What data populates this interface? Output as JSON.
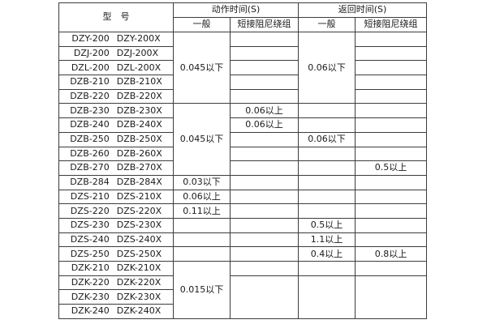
{
  "page": {
    "background": "#ffffff"
  },
  "colors": {
    "border": "#3c3c3c",
    "text": "#1a1a1a"
  },
  "table": {
    "header": {
      "model_label": "型　号",
      "groups": [
        {
          "label": "动作时间(S)",
          "sub": [
            "一般",
            "短接阻尼绕组"
          ]
        },
        {
          "label": "返回时间(S)",
          "sub": [
            "一般",
            "短接阻尼绕组"
          ]
        }
      ]
    },
    "column_keys": [
      "action_general",
      "action_damped",
      "return_general",
      "return_damped"
    ],
    "rows": [
      {
        "models": [
          "DZY-200",
          "DZY-200X"
        ],
        "cells": [
          {
            "t": "0.045以下",
            "rs": 5
          },
          {
            "t": ""
          },
          {
            "t": "0.06以下",
            "rs": 5
          },
          {
            "t": ""
          }
        ]
      },
      {
        "models": [
          "DZJ-200",
          "DZJ-200X"
        ],
        "cells": [
          null,
          {
            "t": ""
          },
          null,
          {
            "t": ""
          }
        ]
      },
      {
        "models": [
          "DZL-200",
          "DZL-200X"
        ],
        "cells": [
          null,
          {
            "t": ""
          },
          null,
          {
            "t": ""
          }
        ]
      },
      {
        "models": [
          "DZB-210",
          "DZB-210X"
        ],
        "cells": [
          null,
          {
            "t": ""
          },
          null,
          {
            "t": ""
          }
        ]
      },
      {
        "models": [
          "DZB-220",
          "DZB-220X"
        ],
        "cells": [
          null,
          {
            "t": ""
          },
          null,
          {
            "t": ""
          }
        ]
      },
      {
        "models": [
          "DZB-230",
          "DZB-230X"
        ],
        "cells": [
          {
            "t": "0.045以下",
            "rs": 5
          },
          {
            "t": "0.06以上"
          },
          {
            "t": ""
          },
          {
            "t": ""
          }
        ]
      },
      {
        "models": [
          "DZB-240",
          "DZB-240X"
        ],
        "cells": [
          null,
          {
            "t": "0.06以上"
          },
          {
            "t": ""
          },
          {
            "t": ""
          }
        ]
      },
      {
        "models": [
          "DZB-250",
          "DZB-250X"
        ],
        "cells": [
          null,
          {
            "t": ""
          },
          {
            "t": "0.06以下"
          },
          {
            "t": ""
          }
        ]
      },
      {
        "models": [
          "DZB-260",
          "DZB-260X"
        ],
        "cells": [
          null,
          {
            "t": ""
          },
          {
            "t": ""
          },
          {
            "t": ""
          }
        ]
      },
      {
        "models": [
          "DZB-270",
          "DZB-270X"
        ],
        "cells": [
          null,
          {
            "t": ""
          },
          {
            "t": ""
          },
          {
            "t": "0.5以上"
          }
        ]
      },
      {
        "models": [
          "DZB-284",
          "DZB-284X"
        ],
        "cells": [
          {
            "t": "0.03以下"
          },
          {
            "t": ""
          },
          {
            "t": ""
          },
          {
            "t": ""
          }
        ]
      },
      {
        "models": [
          "DZS-210",
          "DZS-210X"
        ],
        "cells": [
          {
            "t": "0.06以上"
          },
          {
            "t": ""
          },
          {
            "t": ""
          },
          {
            "t": ""
          }
        ]
      },
      {
        "models": [
          "DZS-220",
          "DZS-220X"
        ],
        "cells": [
          {
            "t": "0.11以上"
          },
          {
            "t": ""
          },
          {
            "t": ""
          },
          {
            "t": ""
          }
        ]
      },
      {
        "models": [
          "DZS-230",
          "DZS-230X"
        ],
        "cells": [
          {
            "t": ""
          },
          {
            "t": ""
          },
          {
            "t": "0.5以上"
          },
          {
            "t": ""
          }
        ]
      },
      {
        "models": [
          "DZS-240",
          "DZS-240X"
        ],
        "cells": [
          {
            "t": ""
          },
          {
            "t": ""
          },
          {
            "t": "1.1以上"
          },
          {
            "t": ""
          }
        ]
      },
      {
        "models": [
          "DZS-250",
          "DZS-250X"
        ],
        "cells": [
          {
            "t": ""
          },
          {
            "t": ""
          },
          {
            "t": "0.4以上"
          },
          {
            "t": "0.8以上"
          }
        ]
      },
      {
        "models": [
          "DZK-210",
          "DZK-210X"
        ],
        "cells": [
          {
            "t": "0.015以下",
            "rs": 4
          },
          {
            "t": ""
          },
          {
            "t": ""
          },
          {
            "t": ""
          }
        ]
      },
      {
        "models": [
          "DZK-220",
          "DZK-220X"
        ],
        "cells": [
          null,
          {
            "t": "",
            "rs": 3
          },
          {
            "t": "",
            "rs": 3
          },
          {
            "t": "",
            "rs": 3
          }
        ]
      },
      {
        "models": [
          "DZK-230",
          "DZK-230X"
        ],
        "cells": [
          null,
          null,
          null,
          null
        ]
      },
      {
        "models": [
          "DZK-240",
          "DZK-240X"
        ],
        "cells": [
          null,
          null,
          null,
          null
        ]
      }
    ]
  }
}
